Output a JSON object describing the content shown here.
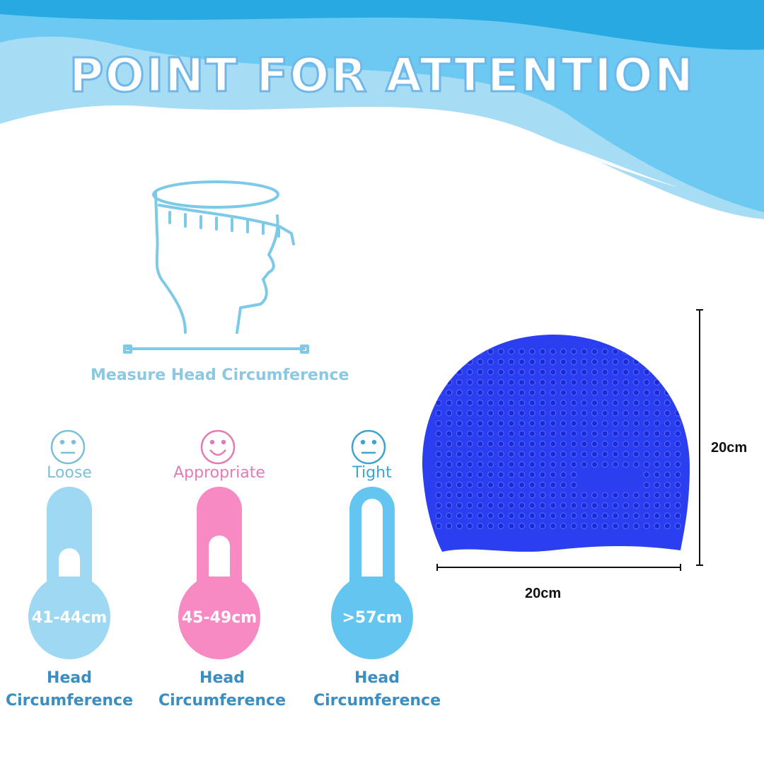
{
  "title": "POINT FOR ATTENTION",
  "measure": {
    "caption": "Measure Head Circumference"
  },
  "sizes": [
    {
      "level": "Loose",
      "range": "41-44cm",
      "label_line1": "Head",
      "label_line2": "Circumference",
      "face": "neutral-face-icon",
      "color": "#9fd8f2",
      "text_color": "#7cc0d8"
    },
    {
      "level": "Appropriate",
      "range": "45-49cm",
      "label_line1": "Head",
      "label_line2": "Circumference",
      "face": "smile-face-icon",
      "color": "#f78ac3",
      "text_color": "#e37bb5"
    },
    {
      "level": "Tight",
      "range": ">57cm",
      "label_line1": "Head",
      "label_line2": "Circumference",
      "face": "neutral-face-icon",
      "color": "#64c6f0",
      "text_color": "#3ea3cf"
    }
  ],
  "product": {
    "width_label": "20cm",
    "height_label": "20cm",
    "cap_color": "#2b3ff0"
  },
  "colors": {
    "wave_dark": "#29a9e1",
    "wave_mid": "#6cc9f2",
    "wave_light": "#a7dcf5"
  }
}
